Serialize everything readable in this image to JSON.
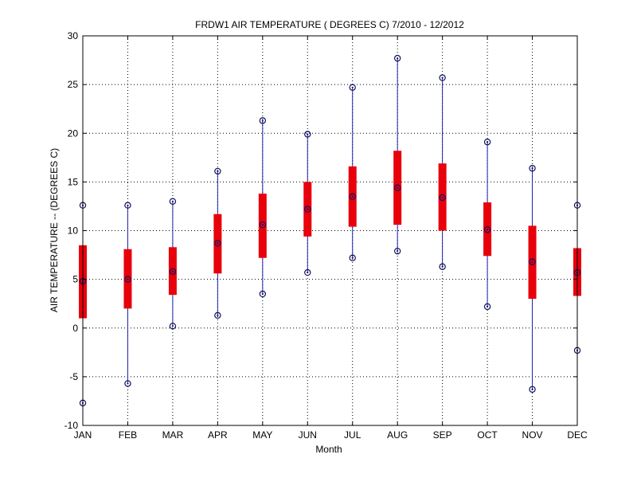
{
  "chart_data": {
    "type": "boxplot",
    "title": "FRDW1  AIR TEMPERATURE ( DEGREES C) 7/2010 - 12/2012",
    "xlabel": "Month",
    "ylabel": "AIR TEMPERATURE -- (DEGREES C)",
    "categories": [
      "JAN",
      "FEB",
      "MAR",
      "APR",
      "MAY",
      "JUN",
      "JUL",
      "AUG",
      "SEP",
      "OCT",
      "NOV",
      "DEC"
    ],
    "ylim": [
      -10,
      30
    ],
    "yticks": [
      -10,
      -5,
      0,
      5,
      10,
      15,
      20,
      25,
      30
    ],
    "grid": true,
    "series": {
      "min": [
        -7.7,
        -5.7,
        0.2,
        1.3,
        3.5,
        5.7,
        7.2,
        7.9,
        6.3,
        2.2,
        -6.3,
        -2.3
      ],
      "q1": [
        1.0,
        2.0,
        3.4,
        5.6,
        7.2,
        9.4,
        10.4,
        10.6,
        10.0,
        7.4,
        3.0,
        3.3
      ],
      "median": [
        4.8,
        5.0,
        5.8,
        8.7,
        10.6,
        12.2,
        13.5,
        14.4,
        13.4,
        10.1,
        6.8,
        5.7
      ],
      "q3": [
        8.5,
        8.1,
        8.3,
        11.7,
        13.8,
        15.0,
        16.6,
        18.2,
        16.9,
        12.9,
        10.5,
        8.2
      ],
      "max": [
        12.6,
        12.6,
        13.0,
        16.1,
        21.3,
        19.9,
        24.7,
        27.7,
        25.7,
        19.1,
        16.4,
        12.6
      ]
    },
    "colors": {
      "box": "#e8000b",
      "whisker": "#1f1fb0",
      "marker": "#101060",
      "grid": "#000000"
    }
  }
}
